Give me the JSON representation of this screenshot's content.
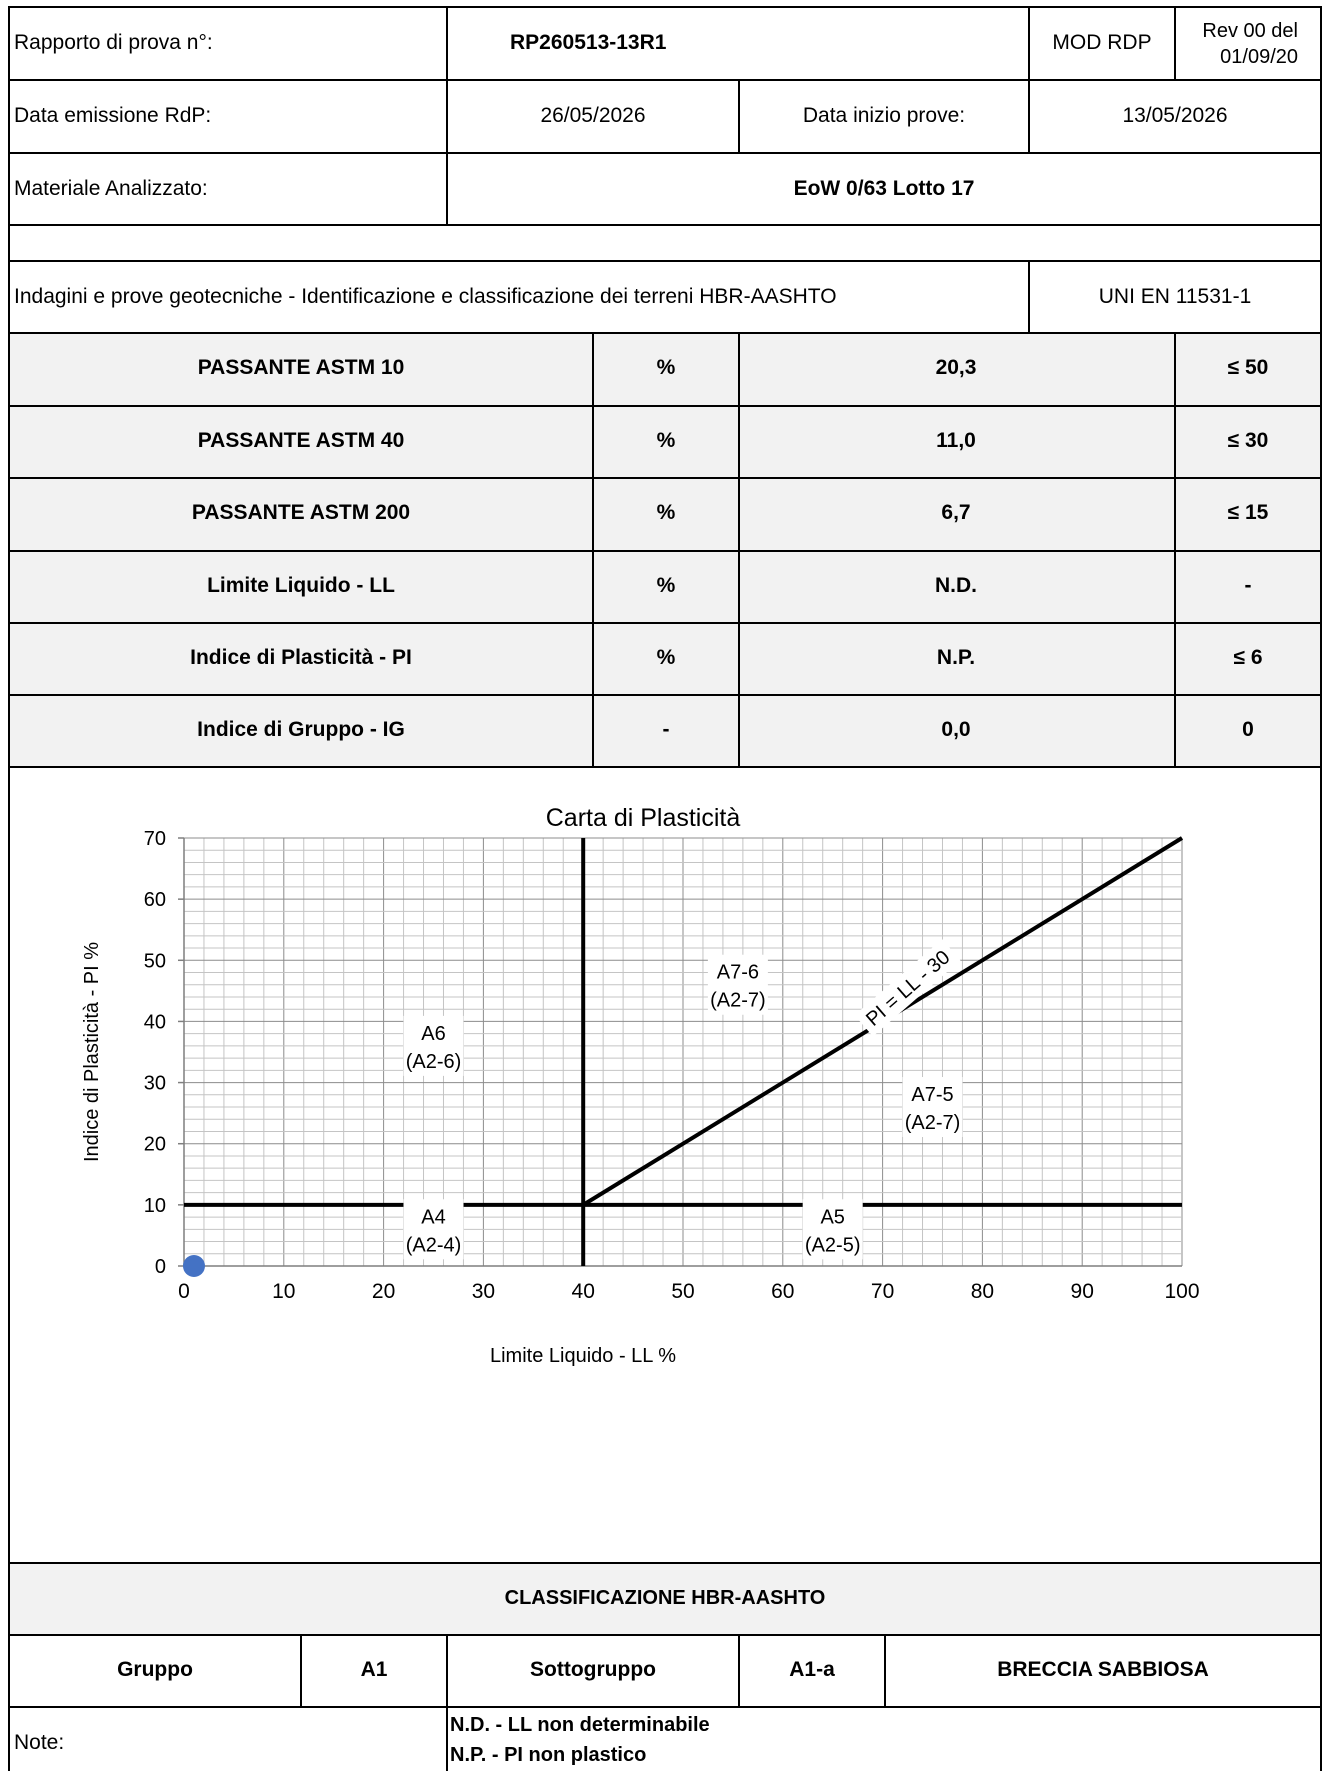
{
  "header": {
    "report_label": "Rapporto di prova n°:",
    "report_number": "RP260513-13R1",
    "mod": "MOD RDP",
    "rev_line1": "Rev 00 del",
    "rev_line2": "01/09/20",
    "issue_label": "Data emissione RdP:",
    "issue_date": "26/05/2026",
    "start_label": "Data inizio prove:",
    "start_date": "13/05/2026",
    "material_label": "Materiale Analizzato:",
    "material": "EoW 0/63 Lotto 17",
    "test_description": "Indagini e prove geotecniche - Identificazione e classificazione dei terreni HBR-AASHTO",
    "standard": "UNI EN 11531-1"
  },
  "results": [
    {
      "name": "PASSANTE ASTM 10",
      "unit": "%",
      "value": "20,3",
      "limit": "≤ 50"
    },
    {
      "name": "PASSANTE ASTM 40",
      "unit": "%",
      "value": "11,0",
      "limit": "≤ 30"
    },
    {
      "name": "PASSANTE ASTM 200",
      "unit": "%",
      "value": "6,7",
      "limit": "≤ 15"
    },
    {
      "name": "Limite Liquido - LL",
      "unit": "%",
      "value": "N.D.",
      "limit": "-"
    },
    {
      "name": "Indice di Plasticità - PI",
      "unit": "%",
      "value": "N.P.",
      "limit": "≤ 6"
    },
    {
      "name": "Indice di Gruppo - IG",
      "unit": "-",
      "value": "0,0",
      "limit": "0"
    }
  ],
  "chart_data": {
    "type": "scatter",
    "title": "Carta di Plasticità",
    "xlabel": "Limite Liquido - LL %",
    "ylabel": "Indice di Plasticità - PI %",
    "xlim": [
      0,
      100
    ],
    "ylim": [
      0,
      70
    ],
    "x_ticks": [
      "0",
      "10",
      "20",
      "30",
      "40",
      "50",
      "60",
      "70",
      "80",
      "90",
      "100"
    ],
    "y_ticks": [
      "0",
      "10",
      "20",
      "30",
      "40",
      "50",
      "60",
      "70"
    ],
    "grid": true,
    "points": [
      {
        "x": 1,
        "y": 0
      }
    ],
    "point_color": "#4472c4",
    "lines": [
      {
        "x": [
          0,
          100
        ],
        "y": [
          10,
          10
        ]
      },
      {
        "x": [
          40,
          40
        ],
        "y": [
          0,
          70
        ]
      },
      {
        "x": [
          40,
          100
        ],
        "y": [
          10,
          70
        ]
      }
    ],
    "line_label": "PI = LL - 30",
    "zones": [
      {
        "line1": "A6",
        "line2": "(A2-6)",
        "x": 25,
        "y": 36
      },
      {
        "line1": "A7-6",
        "line2": "(A2-7)",
        "x": 55.5,
        "y": 46
      },
      {
        "line1": "A7-5",
        "line2": "(A2-7)",
        "x": 75,
        "y": 26
      },
      {
        "line1": "A4",
        "line2": "(A2-4)",
        "x": 25,
        "y": 6
      },
      {
        "line1": "A5",
        "line2": "(A2-5)",
        "x": 65,
        "y": 6
      }
    ]
  },
  "classification": {
    "title": "CLASSIFICAZIONE HBR-AASHTO",
    "group_label": "Gruppo",
    "group": "A1",
    "subgroup_label": "Sottogruppo",
    "subgroup": "A1-a",
    "description": "BRECCIA SABBIOSA"
  },
  "notes": {
    "label": "Note:",
    "line1": "N.D. - LL non determinabile",
    "line2": "N.P. - PI non plastico"
  }
}
